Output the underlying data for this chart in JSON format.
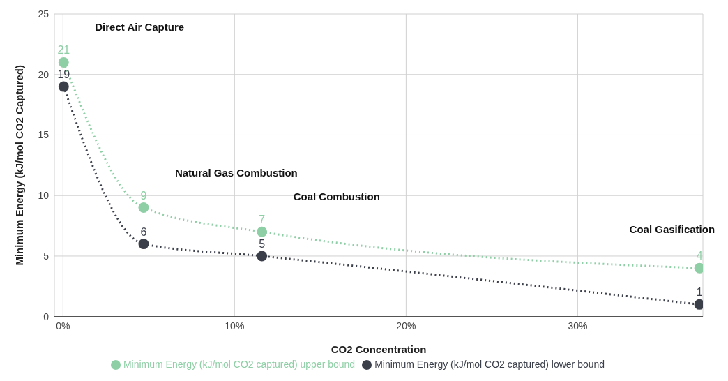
{
  "chart_data": {
    "type": "line",
    "xlabel": "CO2 Concentration",
    "ylabel": "Minimum Energy (kJ/mol CO2 Captured)",
    "x": [
      0.04,
      4.7,
      11.6,
      37.1
    ],
    "series": [
      {
        "name": "Minimum Energy (kJ/mol CO2 captured) upper bound",
        "color": "#8fcfa6",
        "values": [
          21,
          9,
          7,
          4
        ]
      },
      {
        "name": "Minimum Energy (kJ/mol CO2 captured) lower bound",
        "color": "#3b3f4a",
        "values": [
          19,
          6,
          5,
          1
        ]
      }
    ],
    "xlim": [
      -0.5,
      37.3
    ],
    "xticks": [
      {
        "value": 0,
        "label": "0%"
      },
      {
        "value": 10,
        "label": "10%"
      },
      {
        "value": 20,
        "label": "20%"
      },
      {
        "value": 30,
        "label": "30%"
      }
    ],
    "ylim": [
      0,
      25
    ],
    "yticks": [
      0,
      5,
      10,
      15,
      20,
      25
    ],
    "annotations": [
      "Direct Air Capture",
      "Natural Gas Combustion",
      "Coal Combustion",
      "Coal Gasification"
    ],
    "data_labels": true,
    "grid": true,
    "legend": "bottom",
    "marker": "circle",
    "line_style": "dotted"
  }
}
